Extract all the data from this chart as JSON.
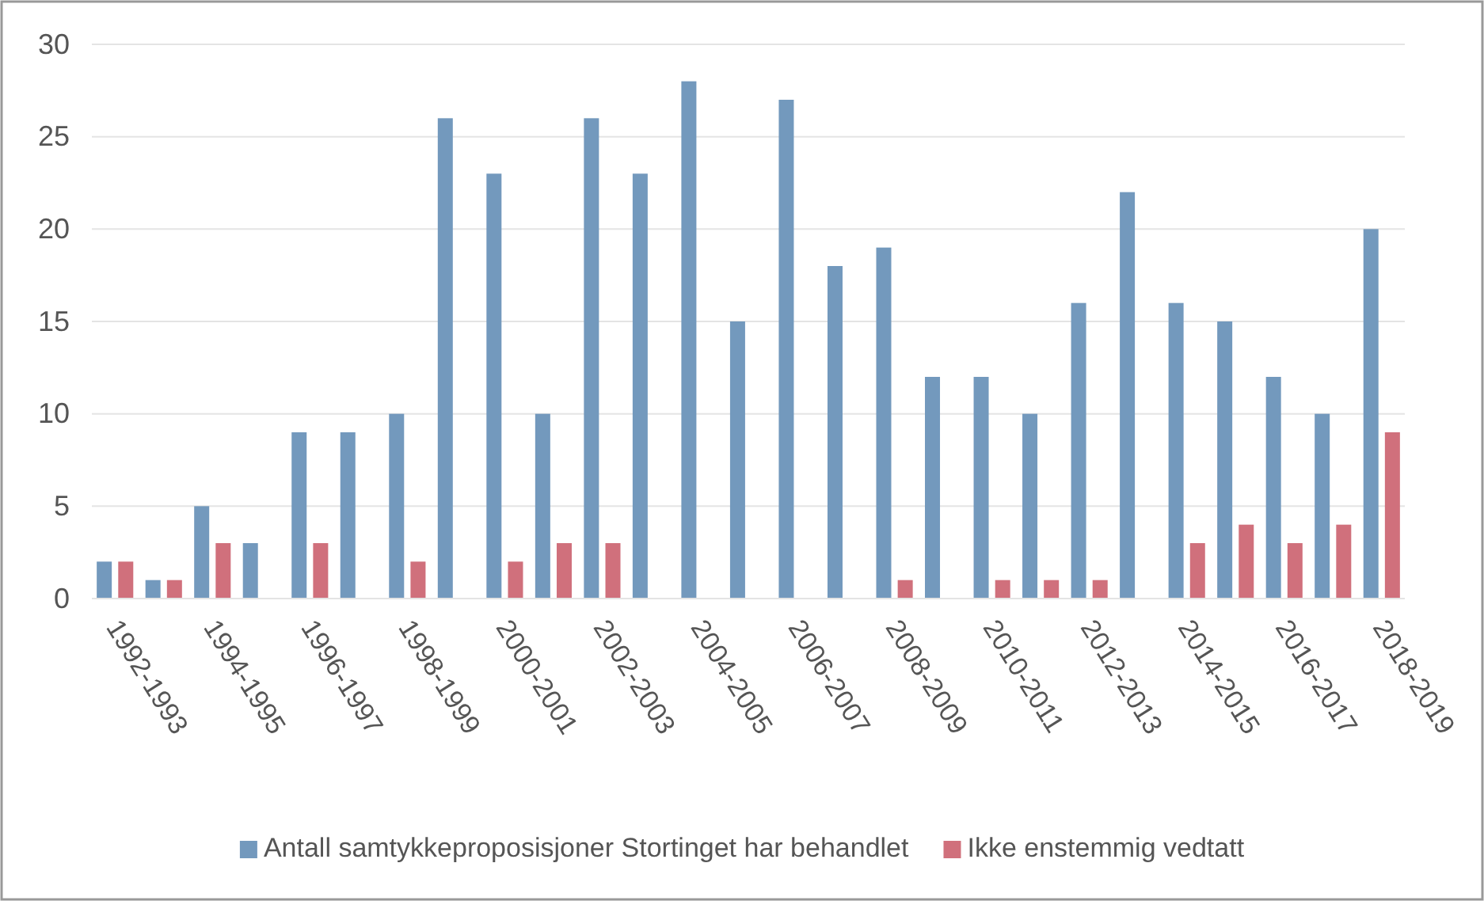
{
  "chart_data": {
    "type": "bar",
    "categories": [
      "1992-1993",
      null,
      "1994-1995",
      null,
      "1996-1997",
      null,
      "1998-1999",
      null,
      "2000-2001",
      null,
      "2002-2003",
      null,
      "2004-2005",
      null,
      "2006-2007",
      null,
      "2008-2009",
      null,
      "2010-2011",
      null,
      "2012-2013",
      null,
      "2014-2015",
      null,
      "2016-2017",
      null,
      "2018-2019"
    ],
    "series": [
      {
        "name": "Antall samtykkeproposisjoner Stortinget har behandlet",
        "color": "#7399bd",
        "values": [
          2,
          1,
          5,
          3,
          9,
          9,
          10,
          26,
          23,
          10,
          26,
          23,
          28,
          15,
          27,
          18,
          19,
          12,
          12,
          10,
          16,
          22,
          16,
          15,
          12,
          10,
          20
        ]
      },
      {
        "name": "Ikke enstemmig vedtatt",
        "color": "#d0707c",
        "values": [
          2,
          1,
          3,
          null,
          3,
          null,
          2,
          null,
          2,
          3,
          3,
          null,
          null,
          null,
          null,
          null,
          1,
          null,
          1,
          1,
          1,
          null,
          3,
          4,
          3,
          4,
          9
        ]
      }
    ],
    "ylim": [
      0,
      30
    ],
    "yticks": [
      0,
      5,
      10,
      15,
      20,
      25,
      30
    ],
    "grid": "y",
    "legend": "bottom"
  }
}
